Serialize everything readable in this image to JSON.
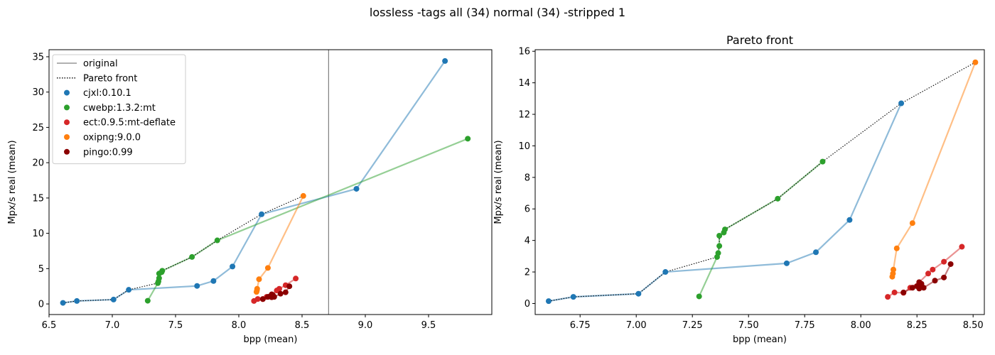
{
  "suptitle": "lossless -tags all (34) normal (34) -stripped 1",
  "chart_data": [
    {
      "type": "line",
      "title": "",
      "xlabel": "bpp (mean)",
      "ylabel": "Mpx/s real (mean)",
      "xlim": [
        6.5,
        10.0
      ],
      "ylim": [
        -1.5,
        36
      ],
      "xticks": [
        "6.5",
        "7.0",
        "7.5",
        "8.0",
        "8.5",
        "9.0",
        "9.5"
      ],
      "xtick_values": [
        6.5,
        7.0,
        7.5,
        8.0,
        8.5,
        9.0,
        9.5
      ],
      "yticks": [
        "0",
        "5",
        "10",
        "15",
        "20",
        "25",
        "30",
        "35"
      ],
      "ytick_values": [
        0,
        5,
        10,
        15,
        20,
        25,
        30,
        35
      ],
      "grid": false,
      "legend": "upper-left",
      "vline_original": 8.71,
      "legend_entries": [
        {
          "label": "original",
          "kind": "line",
          "color": "#808080"
        },
        {
          "label": "Pareto front",
          "kind": "dotted",
          "color": "#000000"
        },
        {
          "label": "cjxl:0.10.1",
          "kind": "marker",
          "color": "#1f77b4"
        },
        {
          "label": "cwebp:1.3.2:mt",
          "kind": "marker",
          "color": "#2ca02c"
        },
        {
          "label": "ect:0.9.5:mt-deflate",
          "kind": "marker",
          "color": "#d62728"
        },
        {
          "label": "oxipng:9.0.0",
          "kind": "marker",
          "color": "#ff7f0e"
        },
        {
          "label": "pingo:0.99",
          "kind": "marker",
          "color": "#8b0000"
        }
      ],
      "series": [
        {
          "name": "cjxl:0.10.1",
          "color": "#1f77b4",
          "x": [
            6.61,
            6.72,
            7.01,
            7.13,
            7.67,
            7.8,
            7.95,
            8.18,
            8.93,
            9.63
          ],
          "y": [
            0.15,
            0.42,
            0.62,
            2.0,
            2.55,
            3.25,
            5.3,
            12.7,
            16.3,
            34.4
          ]
        },
        {
          "name": "cwebp:1.3.2:mt",
          "color": "#2ca02c",
          "x": [
            7.28,
            7.36,
            7.365,
            7.37,
            7.37,
            7.39,
            7.395,
            7.63,
            7.83,
            9.81
          ],
          "y": [
            0.45,
            2.95,
            3.2,
            3.65,
            4.3,
            4.5,
            4.7,
            6.65,
            9.0,
            23.4
          ]
        },
        {
          "name": "ect:0.9.5:mt-deflate",
          "color": "#d62728",
          "x": [
            8.12,
            8.15,
            8.19,
            8.22,
            8.26,
            8.3,
            8.32,
            8.37,
            8.45
          ],
          "y": [
            0.42,
            0.7,
            0.68,
            1.0,
            1.35,
            1.9,
            2.15,
            2.65,
            3.6
          ]
        },
        {
          "name": "oxipng:9.0.0",
          "color": "#ff7f0e",
          "x": [
            8.14,
            8.143,
            8.145,
            8.16,
            8.23,
            8.51
          ],
          "y": [
            1.7,
            1.9,
            2.15,
            3.5,
            5.1,
            15.3
          ]
        },
        {
          "name": "pingo:0.99",
          "color": "#8b0000",
          "x": [
            8.19,
            8.23,
            8.25,
            8.26,
            8.27,
            8.26,
            8.28,
            8.33,
            8.37,
            8.4
          ],
          "y": [
            0.7,
            1.0,
            1.1,
            0.95,
            1.25,
            1.35,
            1.0,
            1.45,
            1.65,
            2.5
          ]
        }
      ],
      "pareto_front": {
        "x": [
          6.61,
          6.72,
          7.01,
          7.13,
          7.36,
          7.365,
          7.37,
          7.37,
          7.39,
          7.395,
          7.63,
          7.83,
          8.18,
          8.51
        ],
        "y": [
          0.15,
          0.42,
          0.62,
          2.0,
          2.95,
          3.2,
          3.65,
          4.3,
          4.5,
          4.7,
          6.65,
          9.0,
          12.7,
          15.3
        ]
      }
    },
    {
      "type": "line",
      "title": "Pareto front",
      "xlabel": "bpp (mean)",
      "ylabel": "Mpx/s real (mean)",
      "xlim": [
        6.55,
        8.55
      ],
      "ylim": [
        -0.7,
        16.1
      ],
      "xticks": [
        "6.75",
        "7.00",
        "7.25",
        "7.50",
        "7.75",
        "8.00",
        "8.25",
        "8.50"
      ],
      "xtick_values": [
        6.75,
        7.0,
        7.25,
        7.5,
        7.75,
        8.0,
        8.25,
        8.5
      ],
      "yticks": [
        "0",
        "2",
        "4",
        "6",
        "8",
        "10",
        "12",
        "14",
        "16"
      ],
      "ytick_values": [
        0,
        2,
        4,
        6,
        8,
        10,
        12,
        14,
        16
      ],
      "grid": false,
      "series": [
        {
          "name": "cjxl:0.10.1",
          "color": "#1f77b4",
          "x": [
            6.61,
            6.72,
            7.01,
            7.13,
            7.67,
            7.8,
            7.95,
            8.18
          ],
          "y": [
            0.15,
            0.42,
            0.62,
            2.0,
            2.55,
            3.25,
            5.3,
            12.7
          ]
        },
        {
          "name": "cwebp:1.3.2:mt",
          "color": "#2ca02c",
          "x": [
            7.28,
            7.36,
            7.365,
            7.37,
            7.37,
            7.39,
            7.395,
            7.63,
            7.83
          ],
          "y": [
            0.45,
            2.95,
            3.2,
            3.65,
            4.3,
            4.5,
            4.7,
            6.65,
            9.0
          ]
        },
        {
          "name": "ect:0.9.5:mt-deflate",
          "color": "#d62728",
          "x": [
            8.12,
            8.15,
            8.19,
            8.22,
            8.26,
            8.3,
            8.32,
            8.37,
            8.45
          ],
          "y": [
            0.42,
            0.7,
            0.68,
            1.0,
            1.35,
            1.9,
            2.15,
            2.65,
            3.6
          ]
        },
        {
          "name": "oxipng:9.0.0",
          "color": "#ff7f0e",
          "x": [
            8.14,
            8.143,
            8.145,
            8.16,
            8.23,
            8.51
          ],
          "y": [
            1.7,
            1.9,
            2.15,
            3.5,
            5.1,
            15.3
          ]
        },
        {
          "name": "pingo:0.99",
          "color": "#8b0000",
          "x": [
            8.19,
            8.23,
            8.25,
            8.26,
            8.27,
            8.26,
            8.28,
            8.33,
            8.37,
            8.4
          ],
          "y": [
            0.7,
            1.0,
            1.1,
            0.95,
            1.25,
            1.35,
            1.0,
            1.45,
            1.65,
            2.5
          ]
        }
      ],
      "pareto_front": {
        "x": [
          6.61,
          6.72,
          7.01,
          7.13,
          7.36,
          7.365,
          7.37,
          7.37,
          7.39,
          7.395,
          7.63,
          7.83,
          8.18,
          8.51
        ],
        "y": [
          0.15,
          0.42,
          0.62,
          2.0,
          2.95,
          3.2,
          3.65,
          4.3,
          4.5,
          4.7,
          6.65,
          9.0,
          12.7,
          15.3
        ]
      }
    }
  ]
}
